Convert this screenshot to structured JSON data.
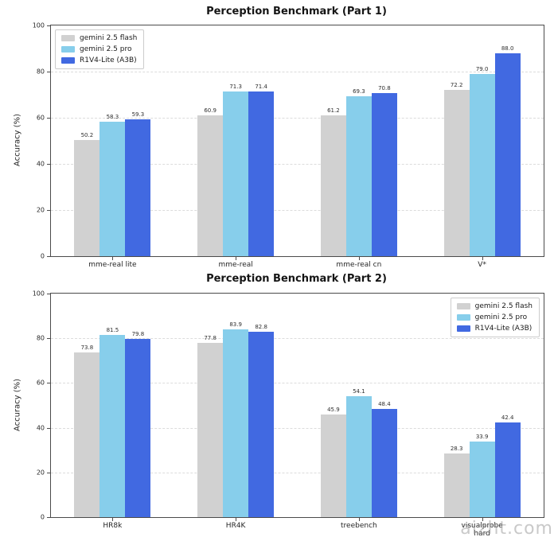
{
  "watermark": {
    "text": "aizht.com"
  },
  "colors": {
    "flash": "#d1d1d1",
    "pro": "#87CEEB",
    "r1v4": "#4169E1",
    "grid": "#dcdcdc",
    "spine": "#4b4b4b"
  },
  "chart_data": [
    {
      "type": "bar",
      "title": "Perception Benchmark (Part 1)",
      "xlabel": "",
      "ylabel": "Accuracy (%)",
      "ylim": [
        0,
        100
      ],
      "yticks": [
        0,
        20,
        40,
        60,
        80,
        100
      ],
      "grid": true,
      "legend_position": "upper left",
      "categories": [
        "mme-real lite",
        "mme-real",
        "mme-real cn",
        "V*"
      ],
      "series": [
        {
          "name": "gemini 2.5 flash",
          "color": "#d1d1d1",
          "values": [
            50.2,
            60.9,
            61.2,
            72.2
          ]
        },
        {
          "name": "gemini 2.5 pro",
          "color": "#87CEEB",
          "values": [
            58.3,
            71.3,
            69.3,
            79.0
          ]
        },
        {
          "name": "R1V4-Lite (A3B)",
          "color": "#4169E1",
          "values": [
            59.3,
            71.4,
            70.8,
            88.0
          ]
        }
      ]
    },
    {
      "type": "bar",
      "title": "Perception Benchmark (Part 2)",
      "xlabel": "",
      "ylabel": "Accuracy (%)",
      "ylim": [
        0,
        100
      ],
      "yticks": [
        0,
        20,
        40,
        60,
        80,
        100
      ],
      "grid": true,
      "legend_position": "upper right",
      "categories": [
        "HR8k",
        "HR4K",
        "treebench",
        "visualprobe\nhard"
      ],
      "series": [
        {
          "name": "gemini 2.5 flash",
          "color": "#d1d1d1",
          "values": [
            73.8,
            77.8,
            45.9,
            28.3
          ]
        },
        {
          "name": "gemini 2.5 pro",
          "color": "#87CEEB",
          "values": [
            81.5,
            83.9,
            54.1,
            33.9
          ]
        },
        {
          "name": "R1V4-Lite (A3B)",
          "color": "#4169E1",
          "values": [
            79.8,
            82.8,
            48.4,
            42.4
          ]
        }
      ]
    }
  ]
}
